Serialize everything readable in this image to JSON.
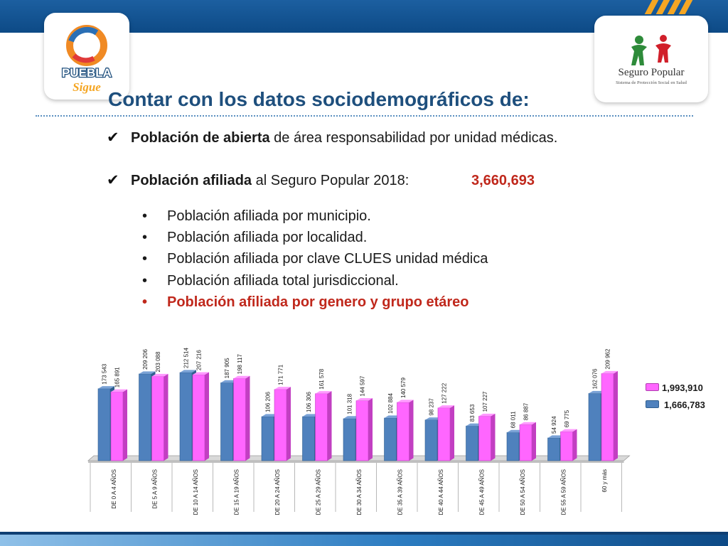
{
  "title": "Contar con los datos sociodemográficos de:",
  "logos": {
    "left": {
      "text_top": "PUEBLA",
      "text_bottom": "Sigue"
    },
    "right": {
      "name": "Seguro Popular",
      "tagline": "Sistema de Protección Social en Salud"
    }
  },
  "checklist": [
    {
      "bold": "Población de abierta",
      "rest": " de área responsabilidad por unidad médicas."
    },
    {
      "bold": "Población afiliada",
      "rest": " al Seguro Popular 2018:",
      "value": "3,660,693"
    }
  ],
  "bullets": [
    {
      "text": "Población afiliada por municipio.",
      "highlight": false
    },
    {
      "text": "Población afiliada por localidad.",
      "highlight": false
    },
    {
      "text": "Población afiliada por clave CLUES unidad médica",
      "highlight": false
    },
    {
      "text": "Población afiliada total jurisdiccional.",
      "highlight": false
    },
    {
      "text": "Población afiliada por genero y grupo etáreo",
      "highlight": true
    }
  ],
  "colors": {
    "blue_series": "#4f81bd",
    "pink_series": "#ff66ff",
    "title": "#1e4f7d",
    "highlight": "#c0281c",
    "header_bar": "#0d4a86"
  },
  "chart_data": {
    "type": "bar",
    "categories": [
      "DE 0 A 4 AÑOS",
      "DE 5 A 9 AÑOS",
      "DE 10 A 14 AÑOS",
      "DE 15 A 19 AÑOS",
      "DE 20 A 24 AÑOS",
      "DE 25 A 29 AÑOS",
      "DE 30 A 34 AÑOS",
      "DE 35 A 39 AÑOS",
      "DE 40 A 44 AÑOS",
      "DE 45 A 49 AÑOS",
      "DE 50 A 54 AÑOS",
      "DE 55 A 59 AÑOS",
      "60 y más"
    ],
    "series": [
      {
        "name": "1,666,783",
        "color": "#4f81bd",
        "values": [
          173543,
          209206,
          212514,
          187905,
          106206,
          106306,
          101318,
          102884,
          98237,
          83653,
          68011,
          54924,
          162076
        ],
        "labels": [
          "173 543",
          "209 206",
          "212 514",
          "187 905",
          "106 206",
          "106 306",
          "101 318",
          "102 884",
          "98 237",
          "83 653",
          "68 011",
          "54 924",
          "162 076"
        ]
      },
      {
        "name": "1,993,910",
        "color": "#ff66ff",
        "values": [
          165891,
          203088,
          207216,
          198117,
          171771,
          161578,
          144597,
          140579,
          127222,
          107227,
          86887,
          69775,
          209962
        ],
        "labels": [
          "165 891",
          "203 088",
          "207 216",
          "198 117",
          "171 771",
          "161 578",
          "144 597",
          "140 579",
          "127 222",
          "107 227",
          "86 887",
          "69 775",
          "209 962"
        ]
      }
    ],
    "ylim": [
      0,
      230000
    ],
    "legend_order": [
      "1,993,910",
      "1,666,783"
    ],
    "legend_position": "right",
    "grid": false
  }
}
